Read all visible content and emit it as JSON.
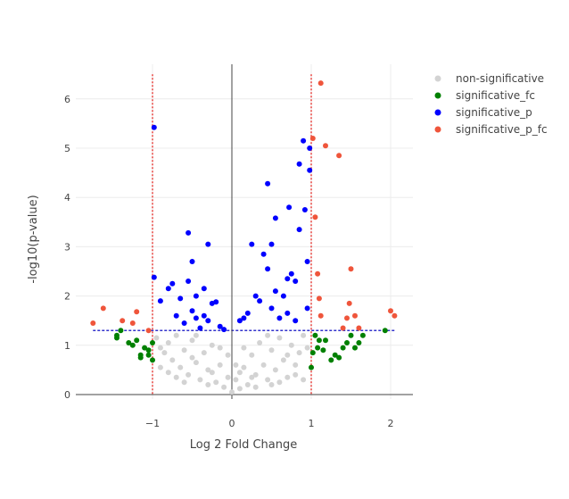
{
  "chart_data": {
    "type": "scatter",
    "title": "",
    "xlabel": "Log 2 Fold Change",
    "ylabel": "-log10(p-value)",
    "xlim": [
      -2.1,
      2.3
    ],
    "ylim": [
      -0.1,
      6.75
    ],
    "x_ticks": [
      -1,
      0,
      1,
      2
    ],
    "x_tick_labels": [
      "−1",
      "0",
      "1",
      "2"
    ],
    "y_ticks": [
      0,
      1,
      2,
      3,
      4,
      5,
      6
    ],
    "y_tick_labels": [
      "0",
      "1",
      "2",
      "3",
      "4",
      "5",
      "6"
    ],
    "grid": true,
    "legend_position": "top-right",
    "thresholds": {
      "fold_change": [
        -1,
        1
      ],
      "p_value_line": 1.3
    },
    "threshold_colors": {
      "fold_change": "#e8413c",
      "p_value": "#3333cc"
    },
    "series": [
      {
        "name": "non-significative",
        "color": "#d3d3d3",
        "points": [
          [
            -0.95,
            1.15
          ],
          [
            -0.9,
            0.95
          ],
          [
            -0.85,
            0.85
          ],
          [
            -0.8,
            1.05
          ],
          [
            -0.75,
            0.7
          ],
          [
            -0.7,
            1.2
          ],
          [
            -0.65,
            0.55
          ],
          [
            -0.6,
            0.9
          ],
          [
            -0.55,
            0.4
          ],
          [
            -0.5,
            1.1
          ],
          [
            -0.45,
            0.65
          ],
          [
            -0.4,
            0.3
          ],
          [
            -0.35,
            0.85
          ],
          [
            -0.3,
            0.5
          ],
          [
            -0.25,
            1.0
          ],
          [
            -0.2,
            0.25
          ],
          [
            -0.15,
            0.6
          ],
          [
            -0.1,
            0.15
          ],
          [
            -0.05,
            0.35
          ],
          [
            0.0,
            0.05
          ],
          [
            0.05,
            0.3
          ],
          [
            0.1,
            0.12
          ],
          [
            0.15,
            0.55
          ],
          [
            0.2,
            0.2
          ],
          [
            0.25,
            0.8
          ],
          [
            0.3,
            0.4
          ],
          [
            0.35,
            1.05
          ],
          [
            0.4,
            0.6
          ],
          [
            0.45,
            0.3
          ],
          [
            0.5,
            0.9
          ],
          [
            0.55,
            0.5
          ],
          [
            0.6,
            1.15
          ],
          [
            0.65,
            0.7
          ],
          [
            0.7,
            0.35
          ],
          [
            0.75,
            1.0
          ],
          [
            0.8,
            0.6
          ],
          [
            0.85,
            0.85
          ],
          [
            0.9,
            1.2
          ],
          [
            0.95,
            0.95
          ],
          [
            -0.6,
            0.25
          ],
          [
            -0.3,
            0.2
          ],
          [
            0.3,
            0.15
          ],
          [
            0.6,
            0.25
          ],
          [
            -0.8,
            0.45
          ],
          [
            0.8,
            0.4
          ],
          [
            -0.45,
            1.2
          ],
          [
            0.45,
            1.2
          ],
          [
            -0.15,
            0.95
          ],
          [
            0.15,
            0.95
          ],
          [
            -0.7,
            0.35
          ],
          [
            0.7,
            0.8
          ],
          [
            -0.5,
            0.75
          ],
          [
            0.5,
            0.2
          ],
          [
            0.05,
            0.6
          ],
          [
            -0.05,
            0.8
          ],
          [
            0.25,
            0.35
          ],
          [
            -0.25,
            0.45
          ],
          [
            0.9,
            0.3
          ],
          [
            -0.9,
            0.55
          ],
          [
            0.1,
            0.45
          ]
        ]
      },
      {
        "name": "significative_fc",
        "color": "#008000",
        "points": [
          [
            -1.45,
            1.15
          ],
          [
            -1.45,
            1.2
          ],
          [
            -1.4,
            1.3
          ],
          [
            -1.3,
            1.05
          ],
          [
            -1.25,
            1.0
          ],
          [
            -1.2,
            1.1
          ],
          [
            -1.15,
            0.8
          ],
          [
            -1.15,
            0.75
          ],
          [
            -1.1,
            0.95
          ],
          [
            -1.05,
            0.9
          ],
          [
            -1.05,
            0.8
          ],
          [
            -1.0,
            0.7
          ],
          [
            -1.0,
            1.05
          ],
          [
            1.0,
            0.55
          ],
          [
            1.02,
            0.85
          ],
          [
            1.05,
            1.2
          ],
          [
            1.08,
            0.95
          ],
          [
            1.1,
            1.1
          ],
          [
            1.15,
            0.9
          ],
          [
            1.18,
            1.1
          ],
          [
            1.25,
            0.7
          ],
          [
            1.3,
            0.8
          ],
          [
            1.35,
            0.75
          ],
          [
            1.4,
            0.95
          ],
          [
            1.45,
            1.05
          ],
          [
            1.5,
            1.2
          ],
          [
            1.55,
            0.95
          ],
          [
            1.6,
            1.05
          ],
          [
            1.65,
            1.2
          ],
          [
            1.93,
            1.3
          ]
        ]
      },
      {
        "name": "significative_p",
        "color": "#0000ff",
        "points": [
          [
            -0.98,
            5.42
          ],
          [
            -0.98,
            2.38
          ],
          [
            -0.9,
            1.9
          ],
          [
            -0.8,
            2.15
          ],
          [
            -0.75,
            2.25
          ],
          [
            -0.7,
            1.6
          ],
          [
            -0.65,
            1.95
          ],
          [
            -0.6,
            1.45
          ],
          [
            -0.55,
            3.28
          ],
          [
            -0.55,
            2.3
          ],
          [
            -0.5,
            2.7
          ],
          [
            -0.5,
            1.7
          ],
          [
            -0.45,
            1.55
          ],
          [
            -0.45,
            2.0
          ],
          [
            -0.4,
            1.35
          ],
          [
            -0.35,
            2.15
          ],
          [
            -0.35,
            1.6
          ],
          [
            -0.3,
            3.05
          ],
          [
            -0.3,
            1.5
          ],
          [
            -0.25,
            1.85
          ],
          [
            -0.2,
            1.88
          ],
          [
            -0.15,
            1.38
          ],
          [
            -0.1,
            1.32
          ],
          [
            0.1,
            1.5
          ],
          [
            0.15,
            1.55
          ],
          [
            0.2,
            1.65
          ],
          [
            0.25,
            3.05
          ],
          [
            0.3,
            2.0
          ],
          [
            0.35,
            1.9
          ],
          [
            0.4,
            2.85
          ],
          [
            0.45,
            4.28
          ],
          [
            0.45,
            2.55
          ],
          [
            0.5,
            3.05
          ],
          [
            0.5,
            1.75
          ],
          [
            0.55,
            3.58
          ],
          [
            0.55,
            2.1
          ],
          [
            0.6,
            1.55
          ],
          [
            0.65,
            2.0
          ],
          [
            0.7,
            2.35
          ],
          [
            0.7,
            1.65
          ],
          [
            0.72,
            3.8
          ],
          [
            0.75,
            2.45
          ],
          [
            0.8,
            2.3
          ],
          [
            0.8,
            1.5
          ],
          [
            0.85,
            4.68
          ],
          [
            0.85,
            3.35
          ],
          [
            0.9,
            5.15
          ],
          [
            0.92,
            3.75
          ],
          [
            0.95,
            2.7
          ],
          [
            0.95,
            1.75
          ],
          [
            0.98,
            5.0
          ],
          [
            0.98,
            4.55
          ]
        ]
      },
      {
        "name": "significative_p_fc",
        "color": "#ef553b",
        "points": [
          [
            -1.75,
            1.45
          ],
          [
            -1.62,
            1.75
          ],
          [
            -1.38,
            1.5
          ],
          [
            -1.25,
            1.45
          ],
          [
            -1.2,
            1.68
          ],
          [
            -1.05,
            1.3
          ],
          [
            1.02,
            5.2
          ],
          [
            1.05,
            3.6
          ],
          [
            1.08,
            2.45
          ],
          [
            1.1,
            1.95
          ],
          [
            1.12,
            1.6
          ],
          [
            1.12,
            6.32
          ],
          [
            1.18,
            5.05
          ],
          [
            1.35,
            4.85
          ],
          [
            1.4,
            1.35
          ],
          [
            1.45,
            1.55
          ],
          [
            1.48,
            1.85
          ],
          [
            1.5,
            2.55
          ],
          [
            1.55,
            1.6
          ],
          [
            1.6,
            1.35
          ],
          [
            2.0,
            1.7
          ],
          [
            2.05,
            1.6
          ]
        ]
      }
    ]
  }
}
